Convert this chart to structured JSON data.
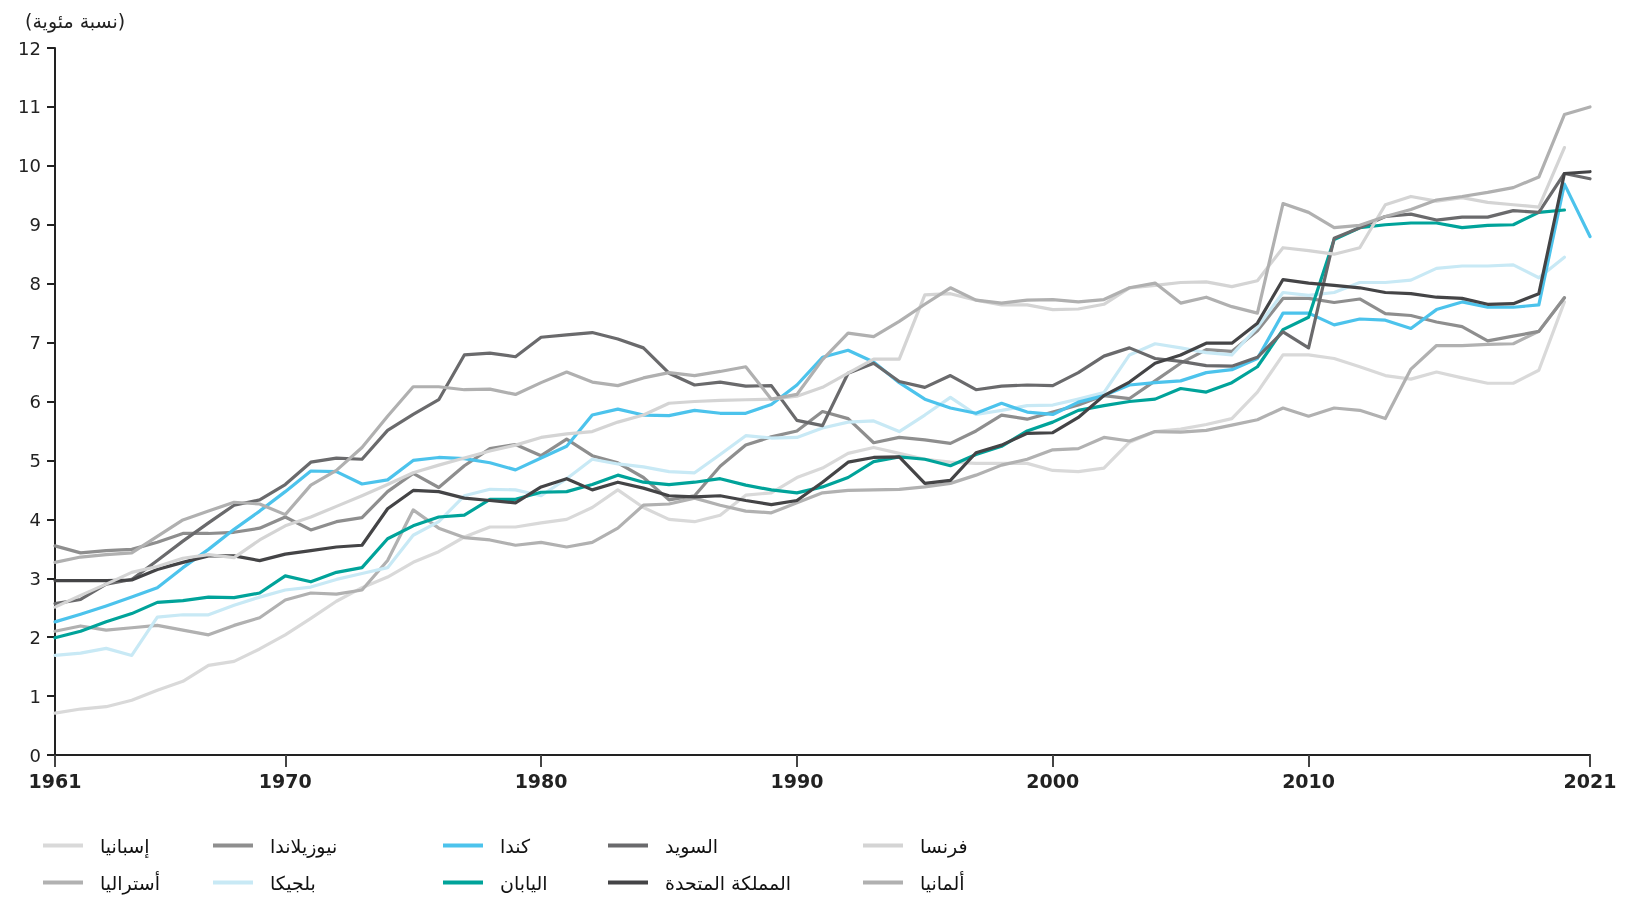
{
  "chart_data": {
    "type": "line",
    "ylabel": "(نسبة مئوية)",
    "x": [
      1961,
      1962,
      1963,
      1964,
      1965,
      1966,
      1967,
      1968,
      1969,
      1970,
      1971,
      1972,
      1973,
      1974,
      1975,
      1976,
      1977,
      1978,
      1979,
      1980,
      1981,
      1982,
      1983,
      1984,
      1985,
      1986,
      1987,
      1988,
      1989,
      1990,
      1991,
      1992,
      1993,
      1994,
      1995,
      1996,
      1997,
      1998,
      1999,
      2000,
      2001,
      2002,
      2003,
      2004,
      2005,
      2006,
      2007,
      2008,
      2009,
      2010,
      2011,
      2012,
      2013,
      2014,
      2015,
      2016,
      2017,
      2018,
      2019,
      2020,
      2021
    ],
    "xlim": [
      1961,
      2021
    ],
    "xticks": [
      1961,
      1970,
      1980,
      1990,
      2000,
      2010,
      2021
    ],
    "ylim": [
      0,
      12
    ],
    "yticks": [
      0,
      1,
      2,
      3,
      4,
      5,
      6,
      7,
      8,
      9,
      10,
      11,
      12
    ],
    "grid": false,
    "legend": "bottom",
    "marker": "none",
    "line_style": "solid",
    "series": [
      {
        "name": "إسبانيا",
        "color": "#d9d9d9",
        "values": [
          0.71,
          0.78,
          0.82,
          0.93,
          1.1,
          1.25,
          1.52,
          1.59,
          1.8,
          2.04,
          2.32,
          2.61,
          2.84,
          3.02,
          3.27,
          3.45,
          3.7,
          3.87,
          3.87,
          3.94,
          4.0,
          4.2,
          4.5,
          4.2,
          4.0,
          3.96,
          4.07,
          4.41,
          4.45,
          4.71,
          4.87,
          5.12,
          5.22,
          5.12,
          5.02,
          4.97,
          4.95,
          4.95,
          4.95,
          4.83,
          4.81,
          4.87,
          5.31,
          5.49,
          5.53,
          5.61,
          5.71,
          6.16,
          6.79,
          6.79,
          6.73,
          6.59,
          6.44,
          6.38,
          6.5,
          6.4,
          6.31,
          6.31,
          6.53,
          7.69,
          null
        ]
      },
      {
        "name": "أستراليا",
        "color": "#b1b1b1",
        "values": [
          2.1,
          2.19,
          2.12,
          2.16,
          2.2,
          2.12,
          2.04,
          2.2,
          2.33,
          2.63,
          2.75,
          2.73,
          2.8,
          3.3,
          4.16,
          3.85,
          3.69,
          3.65,
          3.56,
          3.61,
          3.53,
          3.61,
          3.85,
          4.24,
          4.26,
          4.36,
          4.24,
          4.14,
          4.11,
          4.28,
          4.45,
          4.49,
          4.5,
          4.51,
          4.55,
          4.61,
          4.75,
          4.92,
          5.02,
          5.18,
          5.2,
          5.39,
          5.33,
          5.49,
          5.48,
          5.51,
          5.6,
          5.69,
          5.89,
          5.75,
          5.89,
          5.85,
          5.71,
          6.55,
          6.95,
          6.95,
          6.97,
          6.98,
          7.19,
          7.76,
          null
        ]
      },
      {
        "name": "نيوزيلاندا",
        "color": "#8e8e8e",
        "values": [
          3.55,
          3.43,
          3.47,
          3.49,
          3.61,
          3.76,
          3.76,
          3.78,
          3.85,
          4.04,
          3.82,
          3.96,
          4.03,
          4.47,
          4.78,
          4.54,
          4.91,
          5.2,
          5.27,
          5.08,
          5.36,
          5.08,
          4.96,
          4.71,
          4.33,
          4.4,
          4.9,
          5.26,
          5.4,
          5.5,
          5.83,
          5.71,
          5.3,
          5.39,
          5.35,
          5.29,
          5.5,
          5.77,
          5.7,
          5.82,
          5.94,
          6.1,
          6.05,
          6.35,
          6.65,
          6.88,
          6.85,
          7.2,
          7.75,
          7.75,
          7.68,
          7.74,
          7.49,
          7.46,
          7.35,
          7.27,
          7.03,
          7.11,
          7.19,
          7.76,
          null
        ]
      },
      {
        "name": "بلجيكا",
        "color": "#c8e9f5",
        "values": [
          1.69,
          1.73,
          1.81,
          1.69,
          2.34,
          2.38,
          2.38,
          2.54,
          2.68,
          2.8,
          2.85,
          2.98,
          3.08,
          3.18,
          3.73,
          3.96,
          4.4,
          4.51,
          4.5,
          4.4,
          4.69,
          5.02,
          4.94,
          4.89,
          4.81,
          4.79,
          5.1,
          5.42,
          5.38,
          5.39,
          5.55,
          5.65,
          5.67,
          5.49,
          5.77,
          6.07,
          5.78,
          5.85,
          5.93,
          5.94,
          6.04,
          6.15,
          6.79,
          6.98,
          6.91,
          6.83,
          6.79,
          7.26,
          7.85,
          7.8,
          7.85,
          8.02,
          8.02,
          8.06,
          8.26,
          8.3,
          8.3,
          8.32,
          8.1,
          8.45,
          null
        ]
      },
      {
        "name": "كندا",
        "color": "#4cc3ec",
        "values": [
          2.26,
          2.39,
          2.53,
          2.68,
          2.84,
          3.18,
          3.49,
          3.83,
          4.14,
          4.47,
          4.82,
          4.81,
          4.6,
          4.67,
          5.0,
          5.05,
          5.03,
          4.96,
          4.84,
          5.04,
          5.24,
          5.77,
          5.87,
          5.77,
          5.76,
          5.85,
          5.8,
          5.8,
          5.95,
          6.28,
          6.75,
          6.87,
          6.67,
          6.32,
          6.04,
          5.89,
          5.8,
          5.97,
          5.82,
          5.78,
          5.99,
          6.1,
          6.28,
          6.32,
          6.35,
          6.49,
          6.54,
          6.73,
          7.5,
          7.5,
          7.3,
          7.4,
          7.38,
          7.24,
          7.56,
          7.69,
          7.6,
          7.6,
          7.64,
          9.69,
          8.8
        ]
      },
      {
        "name": "اليابان",
        "color": "#00a39a",
        "values": [
          1.99,
          2.1,
          2.26,
          2.4,
          2.59,
          2.62,
          2.68,
          2.67,
          2.75,
          3.04,
          2.94,
          3.1,
          3.18,
          3.67,
          3.89,
          4.04,
          4.07,
          4.34,
          4.34,
          4.46,
          4.47,
          4.59,
          4.75,
          4.63,
          4.59,
          4.63,
          4.69,
          4.58,
          4.5,
          4.45,
          4.55,
          4.71,
          4.98,
          5.06,
          5.02,
          4.91,
          5.1,
          5.24,
          5.5,
          5.65,
          5.85,
          5.93,
          6.0,
          6.04,
          6.22,
          6.16,
          6.32,
          6.59,
          7.22,
          7.43,
          8.75,
          8.95,
          9.0,
          9.03,
          9.03,
          8.95,
          8.99,
          9.0,
          9.21,
          9.25,
          null
        ]
      },
      {
        "name": "السويد",
        "color": "#6a6a6c",
        "values": [
          2.57,
          2.64,
          2.9,
          2.98,
          3.3,
          3.63,
          3.94,
          4.24,
          4.33,
          4.59,
          4.97,
          5.04,
          5.02,
          5.51,
          5.78,
          6.03,
          6.79,
          6.82,
          6.76,
          7.09,
          7.13,
          7.17,
          7.06,
          6.91,
          6.48,
          6.28,
          6.33,
          6.26,
          6.27,
          5.68,
          5.59,
          6.48,
          6.65,
          6.34,
          6.24,
          6.44,
          6.2,
          6.26,
          6.28,
          6.27,
          6.49,
          6.77,
          6.91,
          6.73,
          6.68,
          6.61,
          6.6,
          6.75,
          7.18,
          6.91,
          8.77,
          8.95,
          9.14,
          9.18,
          9.08,
          9.13,
          9.13,
          9.24,
          9.21,
          9.87,
          9.78
        ]
      },
      {
        "name": "المملكة المتحدة",
        "color": "#444446",
        "values": [
          2.96,
          2.96,
          2.96,
          2.97,
          3.15,
          3.27,
          3.38,
          3.38,
          3.3,
          3.41,
          3.47,
          3.53,
          3.56,
          4.18,
          4.49,
          4.47,
          4.36,
          4.32,
          4.28,
          4.55,
          4.69,
          4.5,
          4.63,
          4.53,
          4.4,
          4.38,
          4.4,
          4.32,
          4.25,
          4.32,
          4.63,
          4.97,
          5.05,
          5.06,
          4.61,
          4.66,
          5.13,
          5.26,
          5.46,
          5.47,
          5.73,
          6.1,
          6.33,
          6.65,
          6.79,
          6.99,
          6.99,
          7.33,
          8.07,
          8.01,
          7.97,
          7.93,
          7.85,
          7.83,
          7.77,
          7.75,
          7.65,
          7.66,
          7.83,
          9.87,
          9.9
        ]
      },
      {
        "name": "فرنسا",
        "color": "#d4d4d4",
        "values": [
          2.51,
          2.71,
          2.9,
          3.1,
          3.2,
          3.34,
          3.4,
          3.35,
          3.65,
          3.89,
          4.04,
          4.22,
          4.4,
          4.59,
          4.79,
          4.92,
          5.04,
          5.16,
          5.26,
          5.39,
          5.45,
          5.49,
          5.65,
          5.77,
          5.97,
          6.0,
          6.02,
          6.03,
          6.04,
          6.09,
          6.24,
          6.48,
          6.72,
          6.72,
          7.81,
          7.83,
          7.72,
          7.64,
          7.64,
          7.56,
          7.57,
          7.65,
          7.93,
          7.97,
          8.02,
          8.03,
          7.95,
          8.05,
          8.61,
          8.56,
          8.5,
          8.61,
          9.34,
          9.48,
          9.4,
          9.46,
          9.38,
          9.34,
          9.3,
          10.31,
          null
        ]
      },
      {
        "name": "ألمانيا",
        "color": "#b0b0b0",
        "values": [
          3.27,
          3.36,
          3.4,
          3.43,
          3.71,
          3.99,
          4.14,
          4.29,
          4.26,
          4.08,
          4.58,
          4.83,
          5.22,
          5.75,
          6.25,
          6.25,
          6.2,
          6.21,
          6.12,
          6.32,
          6.5,
          6.33,
          6.27,
          6.4,
          6.49,
          6.44,
          6.51,
          6.59,
          6.04,
          6.12,
          6.71,
          7.16,
          7.1,
          7.36,
          7.65,
          7.93,
          7.72,
          7.67,
          7.72,
          7.73,
          7.69,
          7.73,
          7.93,
          8.01,
          7.67,
          7.77,
          7.61,
          7.5,
          9.36,
          9.21,
          8.95,
          8.99,
          9.14,
          9.26,
          9.42,
          9.48,
          9.55,
          9.63,
          9.81,
          10.87,
          11.0
        ]
      }
    ]
  }
}
